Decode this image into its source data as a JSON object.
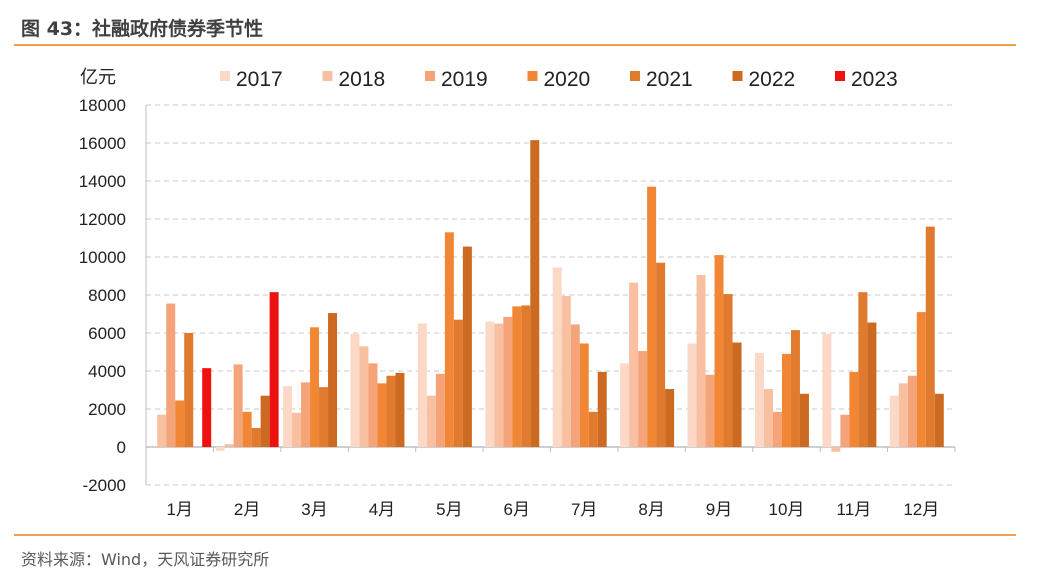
{
  "figure_title": "图 43：社融政府债券季节性",
  "source_note": "资料来源：Wind，天风证券研究所",
  "chart_data": {
    "type": "bar",
    "title": "",
    "ylabel": "亿元",
    "xlabel": "",
    "ylim": [
      -2000,
      18000
    ],
    "yticks": [
      -2000,
      0,
      2000,
      4000,
      6000,
      8000,
      10000,
      12000,
      14000,
      16000,
      18000
    ],
    "ytick_labels": [
      "-2000",
      "0",
      "2000",
      "4000",
      "6000",
      "8000",
      "10000",
      "12000",
      "14000",
      "16000",
      "18000"
    ],
    "grid": true,
    "legend_position": "top",
    "categories": [
      "1月",
      "2月",
      "3月",
      "4月",
      "5月",
      "6月",
      "7月",
      "8月",
      "9月",
      "10月",
      "11月",
      "12月"
    ],
    "series": [
      {
        "name": "2017",
        "color": "#fbd9c6",
        "values": [
          0,
          -200,
          3200,
          5950,
          6500,
          6600,
          9450,
          4400,
          5450,
          4950,
          5950,
          2700
        ]
      },
      {
        "name": "2018",
        "color": "#f8c0a1",
        "values": [
          1700,
          150,
          1800,
          5300,
          2700,
          6500,
          7950,
          8650,
          9050,
          3050,
          -250,
          3350
        ]
      },
      {
        "name": "2019",
        "color": "#f4a478",
        "values": [
          7550,
          4350,
          3400,
          4400,
          3850,
          6850,
          6450,
          5050,
          3800,
          1850,
          1700,
          3750
        ]
      },
      {
        "name": "2020",
        "color": "#f18735",
        "values": [
          2450,
          1850,
          6300,
          3350,
          11300,
          7400,
          5450,
          13700,
          10100,
          4900,
          3950,
          7100
        ]
      },
      {
        "name": "2021",
        "color": "#e07a2e",
        "values": [
          6000,
          1000,
          3150,
          3750,
          6700,
          7450,
          1850,
          9700,
          8050,
          6150,
          8150,
          11600
        ]
      },
      {
        "name": "2022",
        "color": "#cc6a22",
        "values": [
          null,
          2700,
          7050,
          3900,
          10550,
          16150,
          3950,
          3050,
          5500,
          2800,
          6550,
          2800
        ]
      },
      {
        "name": "2023",
        "color": "#ee1111",
        "values": [
          4150,
          8150,
          null,
          null,
          null,
          null,
          null,
          null,
          null,
          null,
          null,
          null
        ]
      }
    ]
  }
}
